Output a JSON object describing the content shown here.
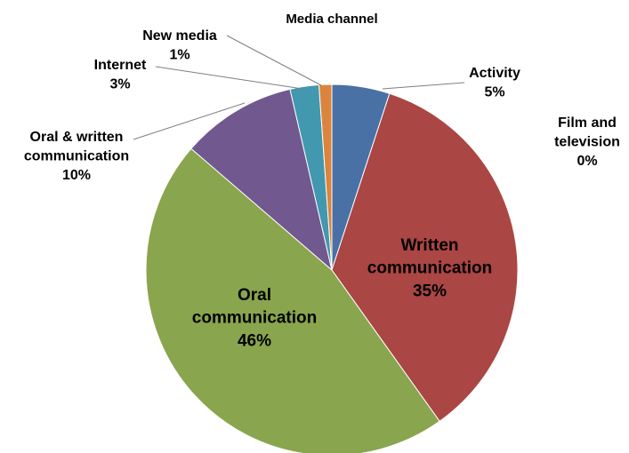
{
  "chart_data": {
    "type": "pie",
    "title": "Media channel",
    "slices": [
      {
        "name": "Activity",
        "percent_label": "5%",
        "value": 5,
        "color": "#4A71A6"
      },
      {
        "name": "Written communication",
        "percent_label": "35%",
        "value": 35,
        "color": "#AA4643"
      },
      {
        "name": "Oral communication",
        "percent_label": "46%",
        "value": 46,
        "color": "#89A54E"
      },
      {
        "name": "Oral & written communication",
        "percent_label": "10%",
        "value": 10,
        "color": "#71588F"
      },
      {
        "name": "Internet",
        "percent_label": "3%",
        "value": 2.5,
        "color": "#4198AF"
      },
      {
        "name": "New media",
        "percent_label": "1%",
        "value": 1.1,
        "color": "#DB843D"
      },
      {
        "name": "Film and television",
        "percent_label": "0%",
        "value": 0,
        "color": "#93A9CF"
      }
    ],
    "label_lines": {
      "Activity": [
        "Activity"
      ],
      "Written communication": [
        "Written",
        "communication"
      ],
      "Oral communication": [
        "Oral",
        "communication"
      ],
      "Oral & written communication": [
        "Oral & written",
        "communication"
      ],
      "Internet": [
        "Internet"
      ],
      "New media": [
        "New media"
      ],
      "Film and television": [
        "Film and",
        "television"
      ]
    },
    "legend": "none"
  }
}
